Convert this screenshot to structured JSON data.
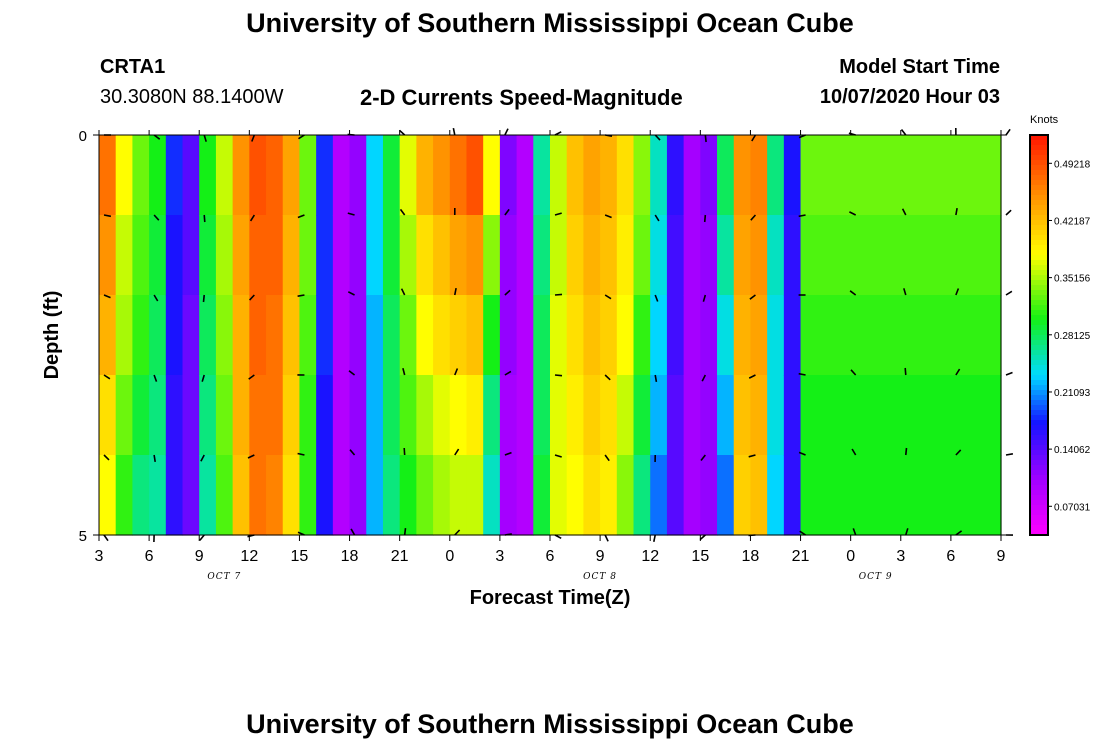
{
  "page": {
    "title_top": "University of Southern Mississippi Ocean Cube",
    "title_bottom": "University of Southern Mississippi Ocean Cube",
    "station_id": "CRTA1",
    "station_coords": "30.3080N 88.1400W",
    "plot_title": "2-D Currents Speed-Magnitude",
    "model_start_label": "Model Start Time",
    "model_start_value": "10/07/2020 Hour 03"
  },
  "chart_data": {
    "type": "heatmap",
    "title": "2-D Currents Speed-Magnitude",
    "xlabel": "Forecast Time(Z)",
    "ylabel": "Depth (ft)",
    "ylim": [
      0,
      5
    ],
    "y_ticks": [
      "0",
      "5"
    ],
    "x_ticks": [
      "3",
      "6",
      "9",
      "12",
      "15",
      "18",
      "21",
      "0",
      "3",
      "6",
      "9",
      "12",
      "15",
      "18",
      "21",
      "0",
      "3",
      "6",
      "9"
    ],
    "date_labels": [
      "OCT 7",
      "OCT 8",
      "OCT 9"
    ],
    "colorbar": {
      "unit": "Knots",
      "ticks": [
        "0.49218",
        "0.42187",
        "0.35156",
        "0.28125",
        "0.21093",
        "0.14062",
        "0.07031"
      ],
      "range": [
        0.035,
        0.527
      ]
    },
    "time_range_hours": [
      0,
      54
    ],
    "depth_layers": 5,
    "columns": [
      {
        "t": 0,
        "v": [
          0.47,
          0.45,
          0.43,
          0.4,
          0.38
        ]
      },
      {
        "t": 1,
        "v": [
          0.38,
          0.36,
          0.35,
          0.33,
          0.31
        ]
      },
      {
        "t": 2,
        "v": [
          0.33,
          0.32,
          0.31,
          0.29,
          0.27
        ]
      },
      {
        "t": 3,
        "v": [
          0.3,
          0.29,
          0.28,
          0.27,
          0.26
        ]
      },
      {
        "t": 4,
        "v": [
          0.18,
          0.17,
          0.17,
          0.16,
          0.16
        ]
      },
      {
        "t": 5,
        "v": [
          0.14,
          0.14,
          0.13,
          0.13,
          0.13
        ]
      },
      {
        "t": 6,
        "v": [
          0.3,
          0.29,
          0.28,
          0.27,
          0.26
        ]
      },
      {
        "t": 7,
        "v": [
          0.36,
          0.35,
          0.34,
          0.33,
          0.32
        ]
      },
      {
        "t": 8,
        "v": [
          0.45,
          0.44,
          0.43,
          0.43,
          0.42
        ]
      },
      {
        "t": 9,
        "v": [
          0.49,
          0.48,
          0.48,
          0.47,
          0.47
        ]
      },
      {
        "t": 10,
        "v": [
          0.48,
          0.48,
          0.47,
          0.47,
          0.46
        ]
      },
      {
        "t": 11,
        "v": [
          0.44,
          0.43,
          0.42,
          0.41,
          0.4
        ]
      },
      {
        "t": 12,
        "v": [
          0.33,
          0.33,
          0.32,
          0.31,
          0.31
        ]
      },
      {
        "t": 13,
        "v": [
          0.18,
          0.18,
          0.18,
          0.17,
          0.17
        ]
      },
      {
        "t": 14,
        "v": [
          0.09,
          0.09,
          0.09,
          0.09,
          0.09
        ]
      },
      {
        "t": 15,
        "v": [
          0.11,
          0.11,
          0.11,
          0.11,
          0.11
        ]
      },
      {
        "t": 16,
        "v": [
          0.23,
          0.23,
          0.22,
          0.22,
          0.22
        ]
      },
      {
        "t": 17,
        "v": [
          0.29,
          0.29,
          0.28,
          0.28,
          0.27
        ]
      },
      {
        "t": 18,
        "v": [
          0.37,
          0.35,
          0.33,
          0.32,
          0.3
        ]
      },
      {
        "t": 19,
        "v": [
          0.43,
          0.4,
          0.38,
          0.35,
          0.33
        ]
      },
      {
        "t": 20,
        "v": [
          0.45,
          0.42,
          0.4,
          0.37,
          0.35
        ]
      },
      {
        "t": 21,
        "v": [
          0.47,
          0.44,
          0.41,
          0.38,
          0.36
        ]
      },
      {
        "t": 22,
        "v": [
          0.49,
          0.45,
          0.42,
          0.39,
          0.36
        ]
      },
      {
        "t": 23,
        "v": [
          0.38,
          0.34,
          0.3,
          0.27,
          0.25
        ]
      },
      {
        "t": 24,
        "v": [
          0.12,
          0.11,
          0.11,
          0.1,
          0.1
        ]
      },
      {
        "t": 25,
        "v": [
          0.09,
          0.09,
          0.09,
          0.09,
          0.09
        ]
      },
      {
        "t": 26,
        "v": [
          0.26,
          0.27,
          0.28,
          0.28,
          0.29
        ]
      },
      {
        "t": 27,
        "v": [
          0.36,
          0.36,
          0.37,
          0.37,
          0.37
        ]
      },
      {
        "t": 28,
        "v": [
          0.42,
          0.41,
          0.4,
          0.39,
          0.38
        ]
      },
      {
        "t": 29,
        "v": [
          0.44,
          0.43,
          0.42,
          0.41,
          0.4
        ]
      },
      {
        "t": 30,
        "v": [
          0.43,
          0.42,
          0.41,
          0.4,
          0.39
        ]
      },
      {
        "t": 31,
        "v": [
          0.4,
          0.39,
          0.38,
          0.36,
          0.34
        ]
      },
      {
        "t": 32,
        "v": [
          0.34,
          0.33,
          0.31,
          0.29,
          0.27
        ]
      },
      {
        "t": 33,
        "v": [
          0.25,
          0.24,
          0.23,
          0.22,
          0.2
        ]
      },
      {
        "t": 34,
        "v": [
          0.16,
          0.15,
          0.15,
          0.14,
          0.14
        ]
      },
      {
        "t": 35,
        "v": [
          0.1,
          0.1,
          0.1,
          0.1,
          0.1
        ]
      },
      {
        "t": 36,
        "v": [
          0.12,
          0.11,
          0.11,
          0.11,
          0.11
        ]
      },
      {
        "t": 37,
        "v": [
          0.28,
          0.26,
          0.24,
          0.22,
          0.2
        ]
      },
      {
        "t": 38,
        "v": [
          0.45,
          0.44,
          0.43,
          0.42,
          0.41
        ]
      },
      {
        "t": 39,
        "v": [
          0.46,
          0.45,
          0.44,
          0.43,
          0.42
        ]
      },
      {
        "t": 40,
        "v": [
          0.27,
          0.25,
          0.24,
          0.24,
          0.23
        ]
      },
      {
        "t": 41,
        "v": [
          0.17,
          0.16,
          0.16,
          0.16,
          0.16
        ]
      },
      {
        "t": 42,
        "v": [
          0.33,
          0.32,
          0.31,
          0.3,
          0.3
        ]
      }
    ]
  }
}
